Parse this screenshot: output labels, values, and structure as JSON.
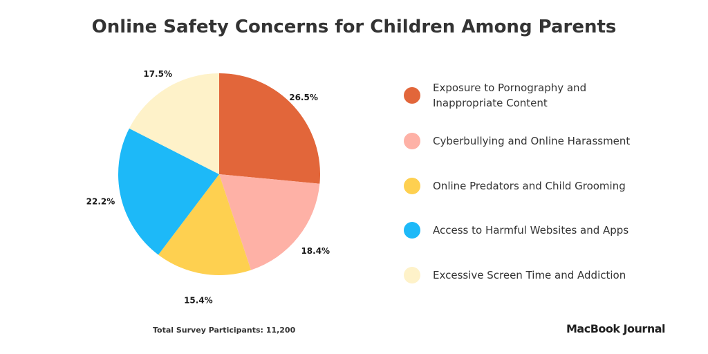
{
  "title": "Online Safety Concerns for Children Among Parents",
  "footer": "Total Survey Participants: 11,200",
  "brand": "MacBook Journal",
  "chart_data": {
    "type": "pie",
    "title": "Online Safety Concerns for Children Among Parents",
    "categories": [
      "Exposure to Pornography and Inappropriate Content",
      "Cyberbullying and Online Harassment",
      "Online Predators and Child Grooming",
      "Access to Harmful Websites and Apps",
      "Excessive Screen Time and Addiction"
    ],
    "legend_labels": [
      "Exposure to Pornography and\nInappropriate Content",
      "Cyberbullying and Online Harassment",
      "Online Predators and Child Grooming",
      "Access to Harmful Websites and Apps",
      "Excessive Screen Time and Addiction"
    ],
    "values": [
      26.5,
      18.4,
      15.4,
      22.2,
      17.5
    ],
    "data_labels": [
      "26.5%",
      "18.4%",
      "15.4%",
      "22.2%",
      "17.5%"
    ],
    "colors": [
      "#E2663A",
      "#FEB1A6",
      "#FED050",
      "#1DB9F8",
      "#FEF2C9"
    ],
    "legend_placement": "right",
    "start": "top, clockwise"
  }
}
